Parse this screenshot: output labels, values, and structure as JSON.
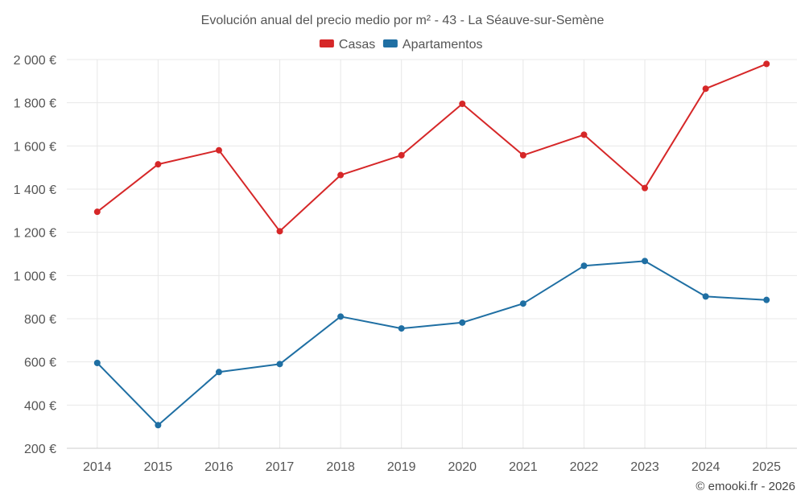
{
  "chart_data": {
    "type": "line",
    "title": "Evolución anual del precio medio por m² - 43 - La Séauve-sur-Semène",
    "xlabel": "",
    "ylabel": "",
    "categories": [
      "2014",
      "2015",
      "2016",
      "2017",
      "2018",
      "2019",
      "2020",
      "2021",
      "2022",
      "2023",
      "2024",
      "2025"
    ],
    "series": [
      {
        "name": "Casas",
        "color": "#d62728",
        "values": [
          1295,
          1515,
          1580,
          1205,
          1465,
          1557,
          1795,
          1557,
          1652,
          1405,
          1865,
          1980
        ]
      },
      {
        "name": "Apartamentos",
        "color": "#1f6fa3",
        "values": [
          595,
          307,
          553,
          590,
          810,
          755,
          782,
          870,
          1045,
          1067,
          903,
          887
        ]
      }
    ],
    "ylim": [
      200,
      2000
    ],
    "yticks": [
      200,
      400,
      600,
      800,
      1000,
      1200,
      1400,
      1600,
      1800,
      2000
    ],
    "ytick_labels": [
      "200 €",
      "400 €",
      "600 €",
      "800 €",
      "1 000 €",
      "1 200 €",
      "1 400 €",
      "1 600 €",
      "1 800 €",
      "2 000 €"
    ],
    "grid": true,
    "legend_position": "top-center"
  },
  "credit": "© emooki.fr - 2026"
}
